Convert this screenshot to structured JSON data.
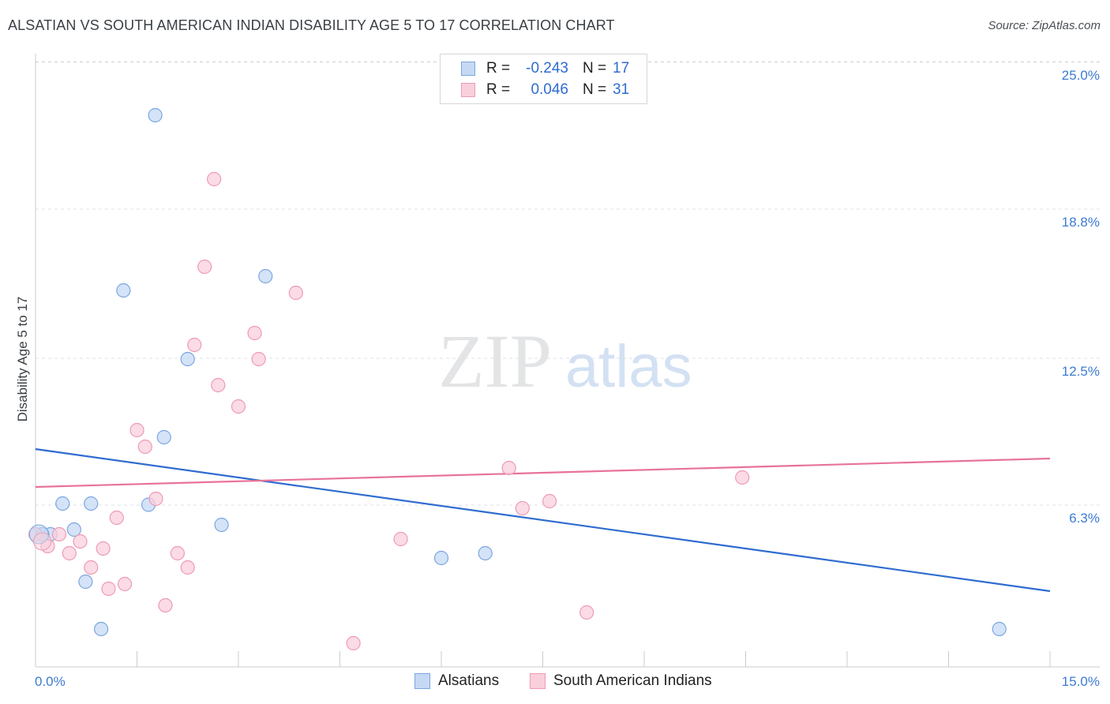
{
  "header": {
    "title": "ALSATIAN VS SOUTH AMERICAN INDIAN DISABILITY AGE 5 TO 17 CORRELATION CHART",
    "source": "Source: ZipAtlas.com"
  },
  "watermark": {
    "zip": "ZIP",
    "atlas": "atlas"
  },
  "legend": {
    "rows": [
      {
        "r_label": "R =",
        "r_value": "-0.243",
        "n_label": "N =",
        "n_value": "17"
      },
      {
        "r_label": "R =",
        "r_value": "0.046",
        "n_label": "N =",
        "n_value": "31"
      }
    ]
  },
  "bottom_legend": {
    "series1": "Alsatians",
    "series2": "South American Indians"
  },
  "colors": {
    "blue_fill": "#c5d9f4",
    "blue_stroke": "#7aa6e0",
    "blue_line": "#2f6ccf",
    "pink_fill": "#f9cfdc",
    "pink_stroke": "#ee9ab5",
    "pink_line": "#e8729a",
    "grid": "#dde0e4",
    "tick_text": "#3d7bd1"
  },
  "chart_data": {
    "type": "scatter",
    "title": "ALSATIAN VS SOUTH AMERICAN INDIAN DISABILITY AGE 5 TO 17 CORRELATION CHART",
    "xlabel": "",
    "ylabel": "Disability Age 5 to 17",
    "xlim": [
      0,
      15
    ],
    "ylim": [
      0,
      25
    ],
    "x_tick_labels": [
      "0.0%",
      "15.0%"
    ],
    "y_ticks": [
      6.3,
      12.5,
      18.8,
      25.0
    ],
    "y_tick_labels": [
      "6.3%",
      "12.5%",
      "18.8%",
      "25.0%"
    ],
    "grid": true,
    "legend_position": "top-center",
    "series": [
      {
        "name": "Alsatians",
        "color": "#7aa6e0",
        "points": [
          [
            1.77,
            23.3
          ],
          [
            1.3,
            15.9
          ],
          [
            3.4,
            16.5
          ],
          [
            2.25,
            13.0
          ],
          [
            1.9,
            9.7
          ],
          [
            0.4,
            6.9
          ],
          [
            0.82,
            6.9
          ],
          [
            1.67,
            6.85
          ],
          [
            0.57,
            5.8
          ],
          [
            0.22,
            5.6
          ],
          [
            2.75,
            6.0
          ],
          [
            0.1,
            5.6
          ],
          [
            0.74,
            3.6
          ],
          [
            6.0,
            4.6
          ],
          [
            6.65,
            4.8
          ],
          [
            0.97,
            1.6
          ],
          [
            14.25,
            1.6
          ]
        ],
        "trend": {
          "x": [
            0,
            15
          ],
          "y": [
            9.2,
            3.2
          ]
        }
      },
      {
        "name": "South American Indians",
        "color": "#ee9ab5",
        "points": [
          [
            2.64,
            20.6
          ],
          [
            2.5,
            16.9
          ],
          [
            3.85,
            15.8
          ],
          [
            2.35,
            13.6
          ],
          [
            3.24,
            14.1
          ],
          [
            3.3,
            13.0
          ],
          [
            2.7,
            11.9
          ],
          [
            3.0,
            11.0
          ],
          [
            1.5,
            10.0
          ],
          [
            1.62,
            9.3
          ],
          [
            7.0,
            8.4
          ],
          [
            10.45,
            8.0
          ],
          [
            1.78,
            7.1
          ],
          [
            7.6,
            7.0
          ],
          [
            7.2,
            6.7
          ],
          [
            1.2,
            6.3
          ],
          [
            0.35,
            5.6
          ],
          [
            0.66,
            5.3
          ],
          [
            1.0,
            5.0
          ],
          [
            2.1,
            4.8
          ],
          [
            5.4,
            5.4
          ],
          [
            0.5,
            4.8
          ],
          [
            0.18,
            5.1
          ],
          [
            0.0,
            5.6
          ],
          [
            0.82,
            4.2
          ],
          [
            2.25,
            4.2
          ],
          [
            1.32,
            3.5
          ],
          [
            1.08,
            3.3
          ],
          [
            1.92,
            2.6
          ],
          [
            8.15,
            2.3
          ],
          [
            4.7,
            1.0
          ]
        ],
        "trend": {
          "x": [
            0,
            15
          ],
          "y": [
            7.6,
            8.8
          ]
        }
      }
    ]
  }
}
